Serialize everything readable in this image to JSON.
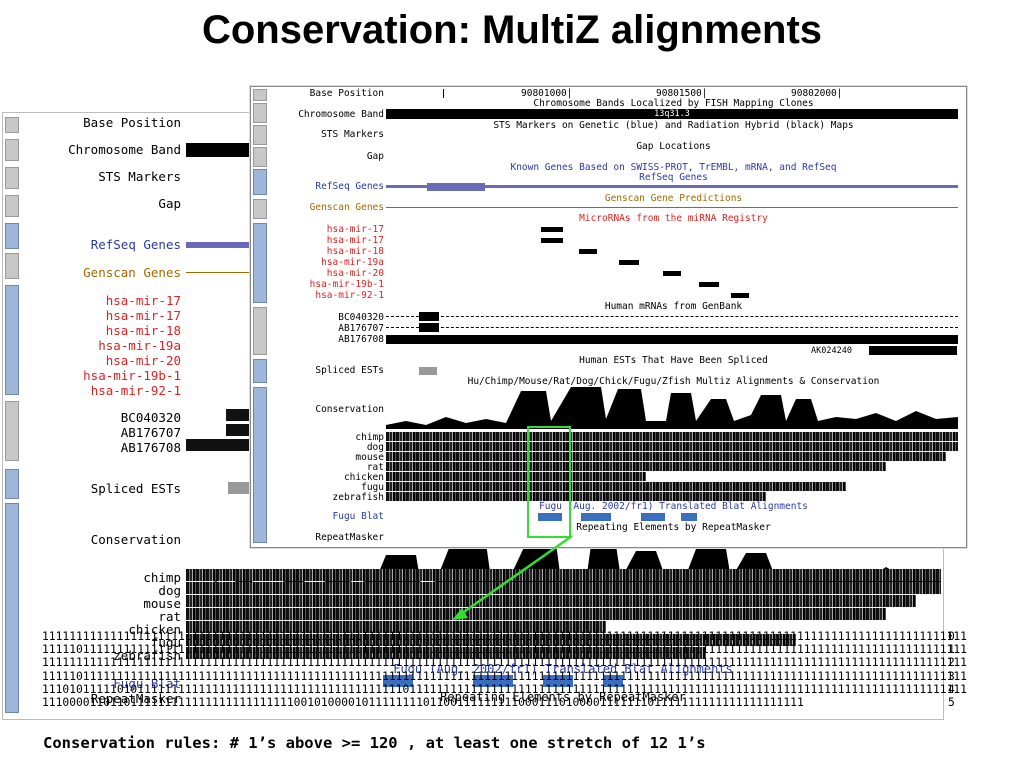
{
  "title": "Conservation: MultiZ alignments",
  "front": {
    "labels": [
      "Base Position",
      "Chromosome Band",
      "STS Markers",
      "Gap",
      "RefSeq Genes",
      "Genscan Genes",
      "hsa-mir-17",
      "hsa-mir-17",
      "hsa-mir-18",
      "hsa-mir-19a",
      "hsa-mir-20",
      "hsa-mir-19b-1",
      "hsa-mir-92-1",
      "BC040320",
      "AB176707",
      "AB176708",
      "Spliced ESTs",
      "Conservation",
      "chimp",
      "dog",
      "mouse",
      "rat",
      "chicken",
      "fugu",
      "zebrafish",
      "Fugu Blat",
      "RepeatMasker"
    ],
    "positions": [
      "90801000|",
      "90801500|",
      "90802000|"
    ],
    "band": "13q31.3",
    "texts": {
      "bands": "Chromosome Bands Localized by FISH Mapping Clones",
      "sts": "STS Markers on Genetic (blue) and Radiation Hybrid (black) Maps",
      "gap": "Gap Locations",
      "known": "Known Genes Based on SWISS-PROT, TrEMBL, mRNA, and RefSeq",
      "refseq": "RefSeq Genes",
      "genscan": "Genscan Gene Predictions",
      "mirna": "MicroRNAs from the miRNA Registry",
      "mrna": "Human mRNAs from GenBank",
      "ak": "AK024240",
      "est": "Human ESTs That Have Been Spliced",
      "multiz": "Hu/Chimp/Mouse/Rat/Dog/Chick/Fugu/Zfish Multiz Alignments & Conservation",
      "fugu": "Fugu (Aug. 2002/fr1) Translated Blat Alignments",
      "repeat": "Repeating Elements by RepeatMasker"
    }
  },
  "back": {
    "labels": [
      "Base Position",
      "Chromosome Band",
      "STS Markers",
      "Gap",
      "RefSeq Genes",
      "Genscan Genes",
      "hsa-mir-17",
      "hsa-mir-17",
      "hsa-mir-18",
      "hsa-mir-19a",
      "hsa-mir-20",
      "hsa-mir-19b-1",
      "hsa-mir-92-1",
      "BC040320",
      "AB176707",
      "AB176708",
      "Spliced ESTs",
      "Conservation",
      "chimp",
      "dog",
      "mouse",
      "rat",
      "chicken",
      "fugu",
      "zebrafish",
      "Fugu Blat",
      "RepeatMasker"
    ],
    "texts": {
      "fugu": "Fugu (Aug. 2002/fr1) Translated Blat Alignments",
      "repeat": "Repeating Elements by RepeatMasker"
    }
  },
  "numbers": [
    {
      "bits": "1111111111111111111111111111111111111111111111111111111111111111111111111111111111111111111111111111111111111111111111111111111111111111",
      "idx": "0"
    },
    {
      "bits": "1111101111111111111111111111111111111111111111111111111111111111111111111111111111111111111111111111111111111111111111111111111111111111",
      "idx": "1"
    },
    {
      "bits": "1111111111111111111111111111111111111111111111111111111111111111111111111111111111111111111111111111111111111111111111111111111111111111",
      "idx": "2"
    },
    {
      "bits": "1111101111111111111111111111111111111111111111111111111111111111111111111111111111111111111111111111111111111111111111111111111111111111",
      "idx": "3"
    },
    {
      "bits": "1110101111101011111111111111111111111111111111111111101111111111111111111111111111111111111111111111111111111111111111111111111111111111",
      "idx": "4"
    },
    {
      "bits": "1110000110110111111111111111111111111001010000101111111101100111111111000111010000111111101111111111111111111111",
      "idx": "5"
    }
  ],
  "rules": "Conservation rules:  # 1’s above >= 120 , at least one stretch of 12  1’s"
}
